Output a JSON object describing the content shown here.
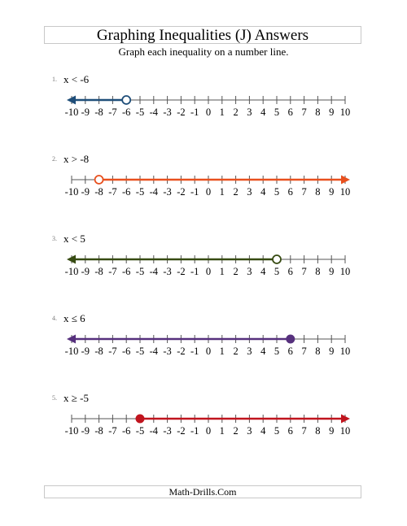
{
  "header": {
    "title": "Graphing Inequalities (J) Answers",
    "instructions": "Graph each inequality on a number line."
  },
  "number_line": {
    "min": -10,
    "max": 10,
    "tick_labels": [
      "-10",
      "-9",
      "-8",
      "-7",
      "-6",
      "-5",
      "-4",
      "-3",
      "-2",
      "-1",
      "0",
      "1",
      "2",
      "3",
      "4",
      "5",
      "6",
      "7",
      "8",
      "9",
      "10"
    ]
  },
  "problems": [
    {
      "number": "1.",
      "expression": "x < -6",
      "value": -6,
      "direction": "left",
      "endpoint": "open",
      "color": "#1f4e79"
    },
    {
      "number": "2.",
      "expression": "x > -8",
      "value": -8,
      "direction": "right",
      "endpoint": "open",
      "color": "#e8501e"
    },
    {
      "number": "3.",
      "expression": "x < 5",
      "value": 5,
      "direction": "left",
      "endpoint": "open",
      "color": "#374b12"
    },
    {
      "number": "4.",
      "expression": "x ≤ 6",
      "value": 6,
      "direction": "left",
      "endpoint": "closed",
      "color": "#56307d"
    },
    {
      "number": "5.",
      "expression": "x ≥ -5",
      "value": -5,
      "direction": "right",
      "endpoint": "closed",
      "color": "#c0141e"
    }
  ],
  "footer": {
    "text": "Math-Drills.Com"
  }
}
